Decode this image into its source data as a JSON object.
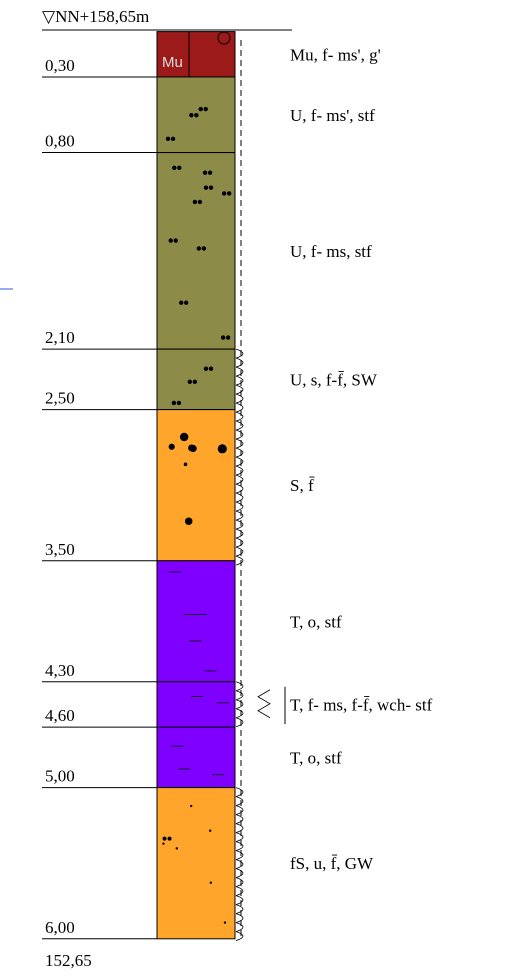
{
  "header": "▽NN+158,65m",
  "top_symbol": "Mu",
  "layers": [
    {
      "depth": "0,30",
      "description": "Mu, f- ms', g'"
    },
    {
      "depth": "0,80",
      "description": "U, f- ms', stf"
    },
    {
      "depth": "2,10",
      "description": "U, f- ms, stf"
    },
    {
      "depth": "2,50",
      "description": "U, s, f-f̄, SW"
    },
    {
      "depth": "3,50",
      "description": "S, f̄"
    },
    {
      "depth": "4,30",
      "description": "T, o, stf"
    },
    {
      "depth": "4,60",
      "description": "T, f- ms, f-f̄, wch- stf"
    },
    {
      "depth": "5,00",
      "description": "T, o, stf"
    },
    {
      "depth": "6,00",
      "description": "fS, u, f̄, GW"
    }
  ],
  "bottom": "152,65"
}
